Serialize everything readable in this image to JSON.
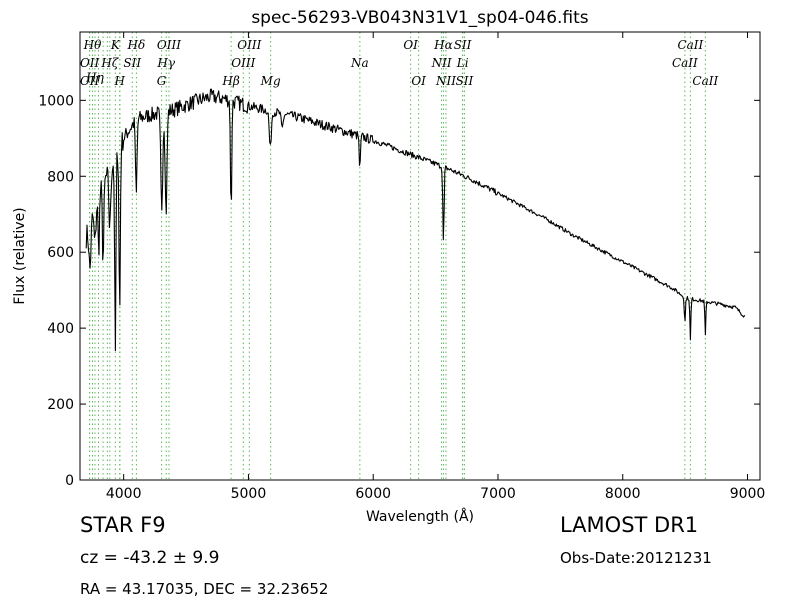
{
  "chart_data": {
    "type": "line",
    "title": "spec-56293-VB043N31V1_sp04-046.fits",
    "xlabel": "Wavelength (Å)",
    "ylabel": "Flux (relative)",
    "xlim": [
      3650,
      9100
    ],
    "ylim": [
      0,
      1180
    ],
    "x_ticks": [
      4000,
      5000,
      6000,
      7000,
      8000,
      9000
    ],
    "y_ticks": [
      0,
      200,
      400,
      600,
      800,
      1000
    ],
    "grid": false,
    "series": [
      {
        "color": "#000000",
        "continuum": [
          [
            3700,
            640
          ],
          [
            3800,
            760
          ],
          [
            3900,
            820
          ],
          [
            4000,
            900
          ],
          [
            4100,
            950
          ],
          [
            4200,
            960
          ],
          [
            4400,
            975
          ],
          [
            4600,
            1000
          ],
          [
            4700,
            1010
          ],
          [
            4800,
            1005
          ],
          [
            5000,
            985
          ],
          [
            5200,
            970
          ],
          [
            5400,
            955
          ],
          [
            5600,
            935
          ],
          [
            5800,
            915
          ],
          [
            6000,
            895
          ],
          [
            6200,
            870
          ],
          [
            6400,
            845
          ],
          [
            6600,
            820
          ],
          [
            6800,
            790
          ],
          [
            7000,
            755
          ],
          [
            7200,
            720
          ],
          [
            7400,
            685
          ],
          [
            7600,
            645
          ],
          [
            7800,
            610
          ],
          [
            8000,
            575
          ],
          [
            8200,
            540
          ],
          [
            8400,
            505
          ],
          [
            8500,
            480
          ],
          [
            8700,
            468
          ],
          [
            8800,
            462
          ],
          [
            8900,
            455
          ],
          [
            8980,
            430
          ]
        ],
        "absorption": [
          [
            3730,
            120,
            8
          ],
          [
            3770,
            100,
            8
          ],
          [
            3800,
            150,
            6
          ],
          [
            3835,
            200,
            6
          ],
          [
            3889,
            150,
            7
          ],
          [
            3933,
            520,
            5
          ],
          [
            3968,
            450,
            5
          ],
          [
            4101,
            200,
            6
          ],
          [
            4305,
            250,
            8
          ],
          [
            4340,
            270,
            7
          ],
          [
            4861,
            300,
            5
          ],
          [
            5175,
            100,
            8
          ],
          [
            5270,
            40,
            8
          ],
          [
            5893,
            90,
            5
          ],
          [
            6563,
            200,
            5
          ],
          [
            8498,
            70,
            4
          ],
          [
            8542,
            110,
            4
          ],
          [
            8662,
            90,
            4
          ]
        ]
      }
    ],
    "lines": [
      {
        "wl": 3727,
        "color": "#5cb85c",
        "label": "OII",
        "row": 1
      },
      {
        "wl": 3727,
        "color": "#5cb85c",
        "label": "OII",
        "row": 2
      },
      {
        "wl": 3750,
        "color": "#5cb85c",
        "label": "Hθ",
        "row": 0
      },
      {
        "wl": 3770,
        "color": "#5cb85c",
        "label": "Hη",
        "row": 1.8
      },
      {
        "wl": 3798,
        "color": "#5cb85c",
        "label": "",
        "row": 0
      },
      {
        "wl": 3835,
        "color": "#5cb85c",
        "label": "",
        "row": 0
      },
      {
        "wl": 3869,
        "color": "#5cb85c",
        "label": "",
        "row": 0
      },
      {
        "wl": 3889,
        "color": "#5cb85c",
        "label": "Hζ",
        "row": 1
      },
      {
        "wl": 3933,
        "color": "#5cb85c",
        "label": "K",
        "row": 0
      },
      {
        "wl": 3968,
        "color": "#5cb85c",
        "label": "H",
        "row": 2
      },
      {
        "wl": 3970,
        "color": "#5cb85c",
        "label": "",
        "row": 0
      },
      {
        "wl": 4069,
        "color": "#5cb85c",
        "label": "SII",
        "row": 1
      },
      {
        "wl": 4102,
        "color": "#5cb85c",
        "label": "Hδ",
        "row": 0
      },
      {
        "wl": 4304,
        "color": "#5cb85c",
        "label": "G",
        "row": 2
      },
      {
        "wl": 4341,
        "color": "#5cb85c",
        "label": "Hγ",
        "row": 1
      },
      {
        "wl": 4363,
        "color": "#5cb85c",
        "label": "OIII",
        "row": 0
      },
      {
        "wl": 4861,
        "color": "#5cb85c",
        "label": "Hβ",
        "row": 2
      },
      {
        "wl": 4959,
        "color": "#5cb85c",
        "label": "OIII",
        "row": 1
      },
      {
        "wl": 5007,
        "color": "#5cb85c",
        "label": "OIII",
        "row": 0
      },
      {
        "wl": 5178,
        "color": "#5cb85c",
        "label": "Mg",
        "row": 2
      },
      {
        "wl": 5893,
        "color": "#5cb85c",
        "label": "Na",
        "row": 1
      },
      {
        "wl": 6300,
        "color": "#5cb85c",
        "label": "OI",
        "row": 0
      },
      {
        "wl": 6364,
        "color": "#5cb85c",
        "label": "OI",
        "row": 2
      },
      {
        "wl": 6548,
        "color": "#5cb85c",
        "label": "NII",
        "row": 1
      },
      {
        "wl": 6563,
        "color": "#5cb85c",
        "label": "Hα",
        "row": 0
      },
      {
        "wl": 6583,
        "color": "#5cb85c",
        "label": "NII",
        "row": 2
      },
      {
        "wl": 6716,
        "color": "#5cb85c",
        "label": "SII",
        "row": 0
      },
      {
        "wl": 6717,
        "color": "#5cb85c",
        "label": "Li",
        "row": 1
      },
      {
        "wl": 6731,
        "color": "#5cb85c",
        "label": "SII",
        "row": 2
      },
      {
        "wl": 8498,
        "color": "#5cb85c",
        "label": "CaII",
        "row": 1
      },
      {
        "wl": 8542,
        "color": "#5cb85c",
        "label": "CaII",
        "row": 0
      },
      {
        "wl": 8662,
        "color": "#5cb85c",
        "label": "CaII",
        "row": 2
      }
    ]
  },
  "info": {
    "class_line": "STAR   F9",
    "survey": "LAMOST DR1",
    "cz": "cz = -43.2 ± 9.9",
    "obs_date": "Obs-Date:20121231",
    "radec": "RA = 43.17035, DEC = 32.23652"
  }
}
